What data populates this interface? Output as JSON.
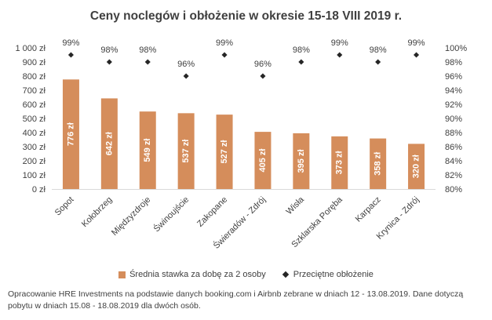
{
  "chart_data": {
    "type": "bar",
    "title": "Ceny noclegów i obłożenie w okresie 15-18 VIII 2019 r.",
    "categories": [
      "Sopot",
      "Kołobrzeg",
      "Międzyzdroje",
      "Świnoujście",
      "Zakopane",
      "Świeradów - Zdrój",
      "Wisła",
      "Szklarska Poręba",
      "Karpacz",
      "Krynica - Zdrój"
    ],
    "series": [
      {
        "name": "Średnia stawka za dobę za 2 osoby",
        "type": "bar",
        "axis": "left",
        "color": "#D58D5B",
        "values": [
          776,
          642,
          549,
          537,
          527,
          405,
          395,
          373,
          358,
          320
        ],
        "labels": [
          "776 zł",
          "642 zł",
          "549 zł",
          "537 zł",
          "527 zł",
          "405 zł",
          "395 zł",
          "373 zł",
          "358 zł",
          "320 zł"
        ]
      },
      {
        "name": "Przeciętne obłożenie",
        "type": "marker",
        "axis": "right",
        "color": "#262626",
        "values": [
          99,
          98,
          98,
          96,
          99,
          96,
          98,
          99,
          98,
          99
        ],
        "labels": [
          "99%",
          "98%",
          "98%",
          "96%",
          "99%",
          "96%",
          "98%",
          "99%",
          "98%",
          "99%"
        ]
      }
    ],
    "ylim_left": [
      0,
      1000
    ],
    "ylim_right": [
      80,
      100
    ],
    "yticks_left": [
      "0 zł",
      "100 zł",
      "200 zł",
      "300 zł",
      "400 zł",
      "500 zł",
      "600 zł",
      "700 zł",
      "800 zł",
      "900 zł",
      "1 000 zł"
    ],
    "yticks_right": [
      "80%",
      "82%",
      "84%",
      "86%",
      "88%",
      "90%",
      "92%",
      "94%",
      "96%",
      "98%",
      "100%"
    ],
    "grid": false,
    "legend": "bottom"
  },
  "footnote": "Opracowanie HRE Investments na podstawie danych booking.com i Airbnb zebrane w dniach 12 - 13.08.2019. Dane dotyczą pobytu w dniach 15.08 - 18.08.2019 dla dwóch osób."
}
